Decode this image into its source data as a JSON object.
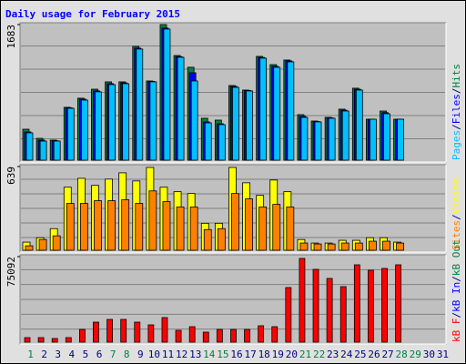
{
  "chart_data": [
    {
      "type": "bar",
      "title": "Daily usage for February 2015",
      "title_color": "#0000ff",
      "categories": [
        "1",
        "2",
        "3",
        "4",
        "5",
        "6",
        "7",
        "8",
        "9",
        "10",
        "11",
        "12",
        "13",
        "14",
        "15",
        "16",
        "17",
        "18",
        "19",
        "20",
        "21",
        "22",
        "23",
        "24",
        "25",
        "26",
        "27",
        "28",
        "29",
        "30",
        "31"
      ],
      "highlight": [
        0,
        6,
        7,
        13,
        14,
        20,
        21,
        27,
        28
      ],
      "highlight_color": "#008040",
      "label_color": "#000080",
      "legend_separator": "/",
      "ylim": [
        0,
        1683
      ],
      "yticks": [
        1683
      ],
      "grid": true,
      "series": [
        {
          "name": "Pages",
          "color": "#00c0ff",
          "values": [
            339,
            237,
            237,
            644,
            746,
            848,
            938,
            949,
            1379,
            972,
            1627,
            1277,
            983,
            463,
            441,
            904,
            859,
            1266,
            1153,
            1220,
            531,
            475,
            520,
            610,
            870,
            508,
            576,
            508,
            null,
            null,
            null
          ]
        },
        {
          "name": "Files",
          "color": "#0000ff",
          "values": [
            350,
            249,
            240,
            650,
            757,
            860,
            950,
            960,
            1390,
            978,
            1640,
            1285,
            1085,
            475,
            452,
            915,
            865,
            1275,
            1165,
            1232,
            545,
            480,
            525,
            620,
            880,
            508,
            590,
            508,
            null,
            null,
            null
          ]
        },
        {
          "name": "Hits",
          "color": "#008040",
          "values": [
            384,
            271,
            249,
            656,
            769,
            881,
            972,
            972,
            1412,
            983,
            1683,
            1299,
            1153,
            520,
            497,
            926,
            870,
            1288,
            1186,
            1243,
            565,
            486,
            531,
            633,
            893,
            508,
            610,
            508,
            null,
            null,
            null
          ]
        }
      ]
    },
    {
      "type": "bar",
      "ylim": [
        0,
        639
      ],
      "yticks": [
        639
      ],
      "grid": true,
      "series": [
        {
          "name": "Sites",
          "color": "#ff8000",
          "values": [
            34,
            82,
            110,
            357,
            357,
            378,
            378,
            385,
            357,
            453,
            371,
            330,
            330,
            158,
            165,
            433,
            392,
            330,
            350,
            330,
            55,
            48,
            48,
            55,
            55,
            69,
            69,
            55,
            null,
            null,
            null
          ]
        },
        {
          "name": "Visits",
          "color": "#ffff00",
          "values": [
            62,
            96,
            165,
            481,
            549,
            495,
            543,
            591,
            529,
            632,
            481,
            447,
            433,
            206,
            206,
            632,
            515,
            419,
            536,
            447,
            82,
            55,
            55,
            76,
            76,
            96,
            96,
            62,
            null,
            null,
            null
          ]
        }
      ]
    },
    {
      "type": "bar",
      "ylim": [
        0,
        75092
      ],
      "yticks": [
        75092
      ],
      "grid": true,
      "series": [
        {
          "name": "kB F",
          "color": "#ff0000",
          "values": [
            3995,
            3995,
            3196,
            3995,
            11186,
            17578,
            19975,
            19975,
            17578,
            15181,
            21572,
            10387,
            13583,
            8789,
            11186,
            11186,
            11186,
            14382,
            13583,
            47940,
            73509,
            63920,
            55930,
            48739,
            67915,
            63122,
            64720,
            67915,
            null,
            null,
            null
          ]
        },
        {
          "name": "kB In",
          "color": "#0000ff",
          "values": [
            0,
            0,
            0,
            0,
            0,
            0,
            0,
            0,
            0,
            0,
            0,
            0,
            0,
            0,
            0,
            0,
            0,
            0,
            0,
            0,
            0,
            0,
            0,
            0,
            0,
            0,
            0,
            0,
            null,
            null,
            null
          ]
        },
        {
          "name": "kB Out",
          "color": "#008040",
          "values": [
            0,
            0,
            0,
            0,
            0,
            0,
            0,
            0,
            0,
            0,
            0,
            0,
            0,
            0,
            0,
            0,
            0,
            0,
            0,
            0,
            0,
            0,
            0,
            0,
            0,
            0,
            0,
            0,
            null,
            null,
            null
          ]
        }
      ]
    }
  ]
}
